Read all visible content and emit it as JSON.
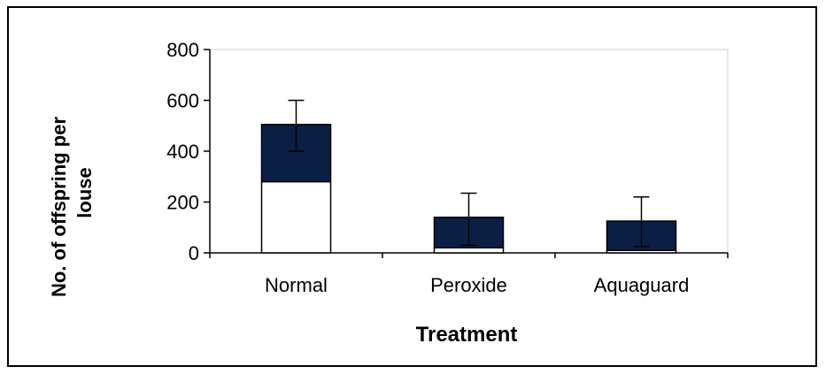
{
  "chart_data": {
    "type": "bar",
    "categories": [
      "Normal",
      "Peroxide",
      "Aquaguard"
    ],
    "series": [
      {
        "values": [
          280,
          20,
          10
        ],
        "color": "#ffffff"
      },
      {
        "values": [
          225,
          120,
          115
        ],
        "color": "#0b1f45"
      }
    ],
    "totals": [
      505,
      140,
      125
    ],
    "error_upper": [
      600,
      235,
      220
    ],
    "error_lower": [
      400,
      30,
      25
    ],
    "ylim": [
      0,
      800
    ],
    "yticks": [
      0,
      200,
      400,
      600,
      800
    ],
    "xlabel": "Treatment",
    "ylabel_line1": "No. of offspring per",
    "ylabel_line2": "louse",
    "grid": false,
    "stacked": true,
    "colors": {
      "lower": "#ffffff",
      "upper": "#0b1f45",
      "axis": "#000000"
    }
  }
}
